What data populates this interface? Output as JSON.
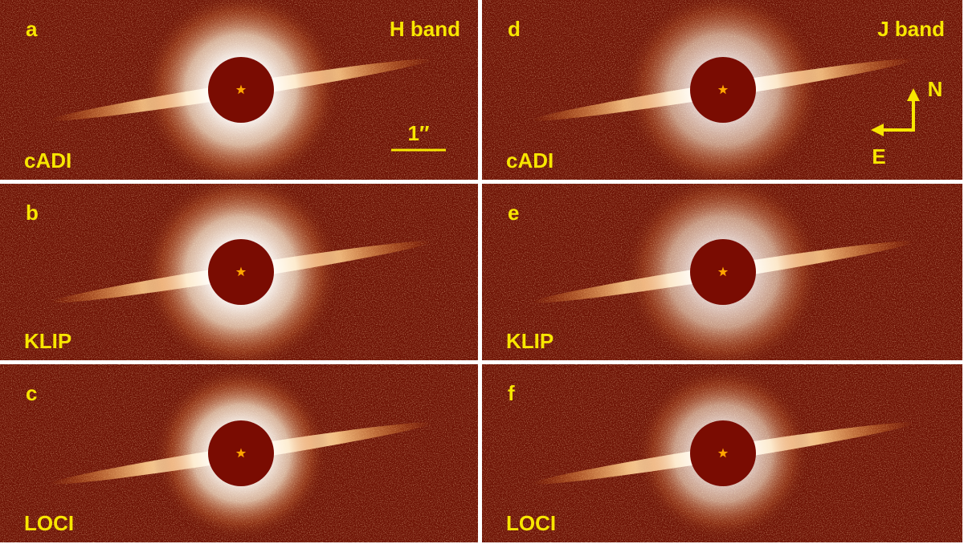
{
  "panels": [
    {
      "letter": "a",
      "method": "cADI",
      "band": "H band"
    },
    {
      "letter": "b",
      "method": "KLIP"
    },
    {
      "letter": "c",
      "method": "LOCI"
    },
    {
      "letter": "d",
      "method": "cADI",
      "band": "J band"
    },
    {
      "letter": "e",
      "method": "KLIP"
    },
    {
      "letter": "f",
      "method": "LOCI"
    }
  ],
  "scale_bar": "1″",
  "compass": {
    "north": "N",
    "east": "E"
  }
}
